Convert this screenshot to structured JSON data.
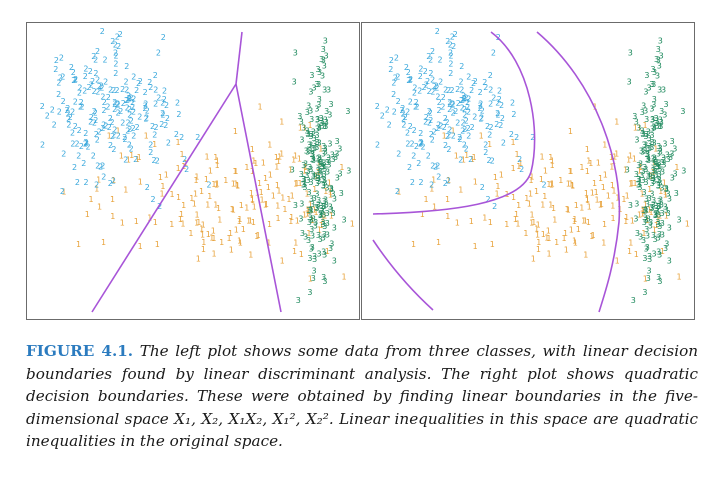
{
  "figure": {
    "label": "FIGURE 4.1.",
    "caption": "The left plot shows some data from three classes, with linear decision boundaries found by linear discriminant analysis. The right plot shows quadratic decision boundaries. These were obtained by finding linear boundaries in the five-dimensional space X₁, X₂, X₁X₂, X₁², X₂². Linear inequalities in this space are quadratic inequalities in the original space."
  },
  "colors": {
    "class_1": "#e8a33c",
    "class_2": "#3aa8dc",
    "class_3": "#1f8a5e",
    "boundary": "#a855d8"
  },
  "chart_data": [
    {
      "type": "scatter",
      "panel": "left",
      "boundary_type": "linear",
      "marker": "class label digit",
      "classes": [
        {
          "name": "1",
          "center": [
            0.5,
            -0.3
          ],
          "spread": [
            0.95,
            0.35
          ],
          "n": 210
        },
        {
          "name": "2",
          "center": [
            -1.15,
            0.55
          ],
          "spread": [
            0.45,
            0.35
          ],
          "n": 210
        },
        {
          "name": "3",
          "center": [
            1.55,
            0.0
          ],
          "spread": [
            0.12,
            0.55
          ],
          "n": 210
        }
      ],
      "xlim": [
        -2.0,
        2.0
      ],
      "ylim": [
        -1.5,
        1.5
      ],
      "title": "",
      "xlabel": "",
      "ylabel": ""
    },
    {
      "type": "scatter",
      "panel": "right",
      "boundary_type": "quadratic",
      "marker": "class label digit",
      "classes": [
        {
          "name": "1",
          "center": [
            0.5,
            -0.3
          ],
          "spread": [
            0.95,
            0.35
          ],
          "n": 210
        },
        {
          "name": "2",
          "center": [
            -1.15,
            0.55
          ],
          "spread": [
            0.45,
            0.35
          ],
          "n": 210
        },
        {
          "name": "3",
          "center": [
            1.55,
            0.0
          ],
          "spread": [
            0.12,
            0.55
          ],
          "n": 210
        }
      ],
      "xlim": [
        -2.0,
        2.0
      ],
      "ylim": [
        -1.5,
        1.5
      ],
      "title": "",
      "xlabel": "",
      "ylabel": ""
    }
  ]
}
